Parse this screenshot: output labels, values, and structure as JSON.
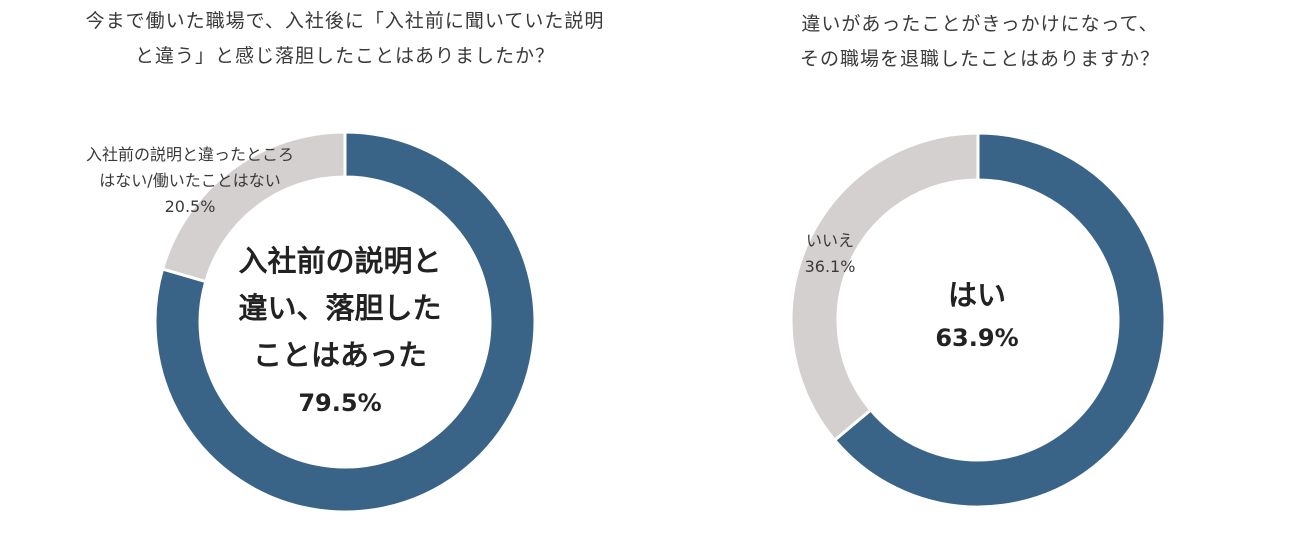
{
  "colors": {
    "major": "#3a6487",
    "minor": "#d4d0cf",
    "separator": "#ffffff"
  },
  "chart_data": [
    {
      "type": "pie",
      "title_lines": [
        "今まで働いた職場で、入社後に「入社前に聞いていた説明",
        "と違う」と感じ落胆したことはありましたか？"
      ],
      "slices": [
        {
          "label_lines": [
            "入社前の説明と",
            "違い、落胆した",
            "ことはあった"
          ],
          "value": 79.5,
          "value_label": "79.5%",
          "color": "#3a6487"
        },
        {
          "label_lines": [
            "入社前の説明と違ったところ",
            "はない/働いたことはない"
          ],
          "value": 20.5,
          "value_label": "20.5%",
          "color": "#d4d0cf"
        }
      ]
    },
    {
      "type": "pie",
      "title_lines": [
        "違いがあったことがきっかけになって、",
        "その職場を退職したことはありますか？"
      ],
      "slices": [
        {
          "label_lines": [
            "はい"
          ],
          "value": 63.9,
          "value_label": "63.9%",
          "color": "#3a6487"
        },
        {
          "label_lines": [
            "いいえ"
          ],
          "value": 36.1,
          "value_label": "36.1%",
          "color": "#d4d0cf"
        }
      ]
    }
  ]
}
